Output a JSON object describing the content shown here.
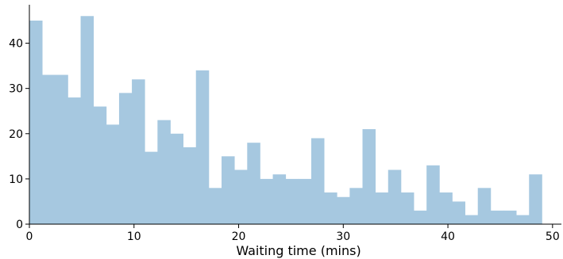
{
  "chart_data": {
    "type": "bar",
    "subtype": "histogram",
    "title": "",
    "xlabel": "Waiting time (mins)",
    "ylabel": "",
    "xlim": [
      0,
      51
    ],
    "ylim": [
      0,
      48.5
    ],
    "bin_width": 1.2245,
    "bin_start": 0,
    "values": [
      45,
      33,
      33,
      28,
      46,
      26,
      22,
      29,
      32,
      16,
      23,
      20,
      17,
      34,
      8,
      15,
      12,
      18,
      10,
      11,
      10,
      10,
      19,
      7,
      6,
      8,
      21,
      7,
      12,
      7,
      3,
      13,
      7,
      5,
      2,
      8,
      3,
      3,
      2,
      11
    ],
    "xticks": [
      0,
      10,
      20,
      30,
      40,
      50
    ],
    "xtick_labels": [
      "0",
      "10",
      "20",
      "30",
      "40",
      "50"
    ],
    "yticks": [
      0,
      10,
      20,
      30,
      40
    ],
    "ytick_labels": [
      "0",
      "10",
      "20",
      "30",
      "40"
    ],
    "bar_color": "#a6c8e0",
    "grid": false,
    "legend": false
  }
}
